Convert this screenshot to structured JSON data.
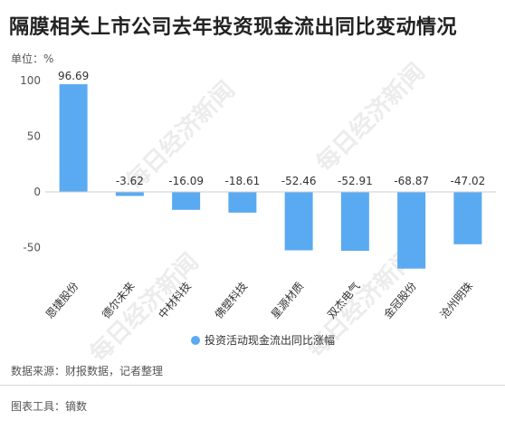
{
  "title": "隔膜相关上市公司去年投资现金流出同比变动情况",
  "unit_label": "单位：%",
  "source": "数据来源：财报数据，记者整理",
  "tool": "图表工具：镝数",
  "watermark": "每日经济新闻",
  "colors": {
    "bar": "#5aaaf2",
    "axis": "#cccccc",
    "text": "#333333"
  },
  "chart_data": {
    "type": "bar",
    "categories": [
      "恩捷股份",
      "德尔未来",
      "中材科技",
      "佛塑科技",
      "星源材质",
      "双杰电气",
      "金冠股份",
      "沧州明珠"
    ],
    "series": [
      {
        "name": "投资活动现金流出同比涨幅",
        "values": [
          96.69,
          -3.62,
          -16.09,
          -18.61,
          -52.46,
          -52.91,
          -68.87,
          -47.02
        ]
      }
    ],
    "value_labels": [
      "96.69",
      "-3.62",
      "-16.09",
      "-18.61",
      "-52.46",
      "-52.91",
      "-68.87",
      "-47.02"
    ],
    "ylim": [
      -68.87,
      100
    ],
    "yticks": [
      100,
      50,
      0,
      -50
    ],
    "ytick_labels": [
      "100",
      "50",
      "0",
      "-50"
    ],
    "legend_position": "bottom"
  }
}
